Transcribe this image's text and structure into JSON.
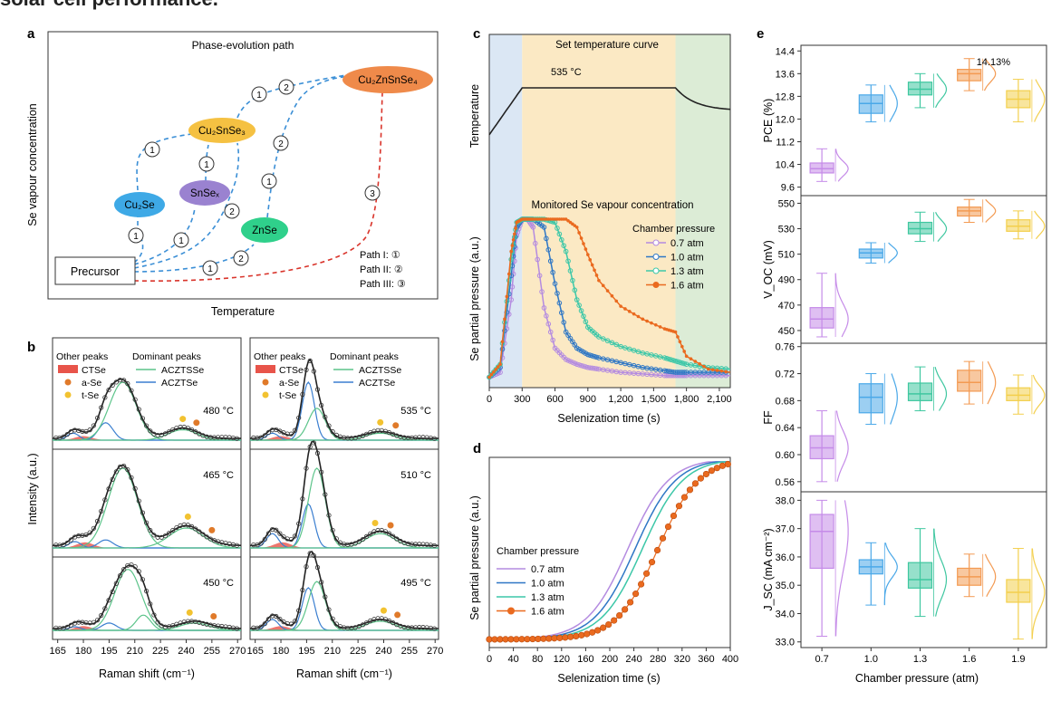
{
  "page_title": "solar cell performance.",
  "panel_labels": {
    "a": "a",
    "b": "b",
    "c": "c",
    "d": "d",
    "e": "e"
  },
  "panel_a": {
    "title": "Phase-evolution path",
    "ylabel": "Se vapour concentration",
    "xlabel": "Temperature",
    "nodes": {
      "precursor": "Precursor",
      "cu2se": "Cu₂Se",
      "snsex": "SnSeₓ",
      "cu2snse3": "Cu₂SnSe₃",
      "znse": "ZnSe",
      "czts": "Cu₂ZnSnSe₄"
    },
    "markers": {
      "one": "1",
      "two": "2",
      "three": "3"
    },
    "path_legend": [
      "Path I: ①",
      "Path II: ②",
      "Path III: ③"
    ],
    "colors": {
      "cu2se": "#3ea9e6",
      "snsex": "#9a82d0",
      "cu2snse3": "#f5c142",
      "znse": "#2fd08b",
      "czts": "#ef8a4a",
      "path_blue": "#3b8fd6",
      "path_red": "#d9342b"
    }
  },
  "panel_b": {
    "ylabel": "Intensity (a.u.)",
    "xlabel": "Raman shift (cm⁻¹)",
    "legend": {
      "other_title": "Other peaks",
      "dominant_title": "Dominant peaks",
      "ctse": "CTSe",
      "ase": "a-Se",
      "tse": "t-Se",
      "acztsse": "ACZTSSe",
      "acztse": "ACZTSe"
    },
    "xticks": [
      "165",
      "180",
      "195",
      "210",
      "225",
      "240",
      "255",
      "270"
    ],
    "left_temps": [
      "480 °C",
      "465 °C",
      "450 °C"
    ],
    "right_temps": [
      "535 °C",
      "510 °C",
      "495 °C"
    ],
    "colors": {
      "ctse": "#e8544a",
      "ase": "#e07a2a",
      "tse": "#f2c230",
      "acztsse": "#5cc48a",
      "acztse": "#3b7fd0",
      "fit": "#222222"
    }
  },
  "chart_data": [
    {
      "type": "line",
      "title": "Set temperature curve",
      "ylabel": "Temperature",
      "annotation": "535 °C",
      "x": [
        0,
        300,
        1700,
        2200
      ],
      "y": [
        0.55,
        1.0,
        1.0,
        0.78
      ]
    },
    {
      "type": "line",
      "title": "Monitored Se vapour concentration",
      "xlabel": "Selenization time (s)",
      "ylabel": "Se partial pressure (a.u.)",
      "legend_title": "Chamber pressure",
      "xlim": [
        0,
        2200
      ],
      "xticks": [
        "0",
        "300",
        "600",
        "900",
        "1,200",
        "1,500",
        "1,800",
        "2,100"
      ],
      "shaded_regions": [
        {
          "from": 0,
          "to": 300,
          "color": "#dbe7f4"
        },
        {
          "from": 300,
          "to": 1700,
          "color": "#fbe9c4"
        },
        {
          "from": 1700,
          "to": 2200,
          "color": "#dcecd6"
        }
      ],
      "x": [
        0,
        100,
        200,
        250,
        300,
        350,
        400,
        500,
        600,
        700,
        800,
        900,
        1000,
        1200,
        1400,
        1600,
        1700,
        1800,
        2000,
        2200
      ],
      "series": [
        {
          "name": "0.7 atm",
          "color": "#b48be0",
          "values": [
            0.02,
            0.05,
            0.5,
            0.9,
            1.0,
            1.0,
            0.95,
            0.45,
            0.2,
            0.13,
            0.1,
            0.08,
            0.07,
            0.05,
            0.04,
            0.03,
            0.03,
            0.03,
            0.03,
            0.03
          ]
        },
        {
          "name": "1.0 atm",
          "color": "#2f77c5",
          "values": [
            0.02,
            0.08,
            0.65,
            0.95,
            1.0,
            1.0,
            1.0,
            0.95,
            0.6,
            0.3,
            0.2,
            0.16,
            0.14,
            0.11,
            0.08,
            0.06,
            0.05,
            0.05,
            0.05,
            0.05
          ]
        },
        {
          "name": "1.3 atm",
          "color": "#3cc7a8",
          "values": [
            0.02,
            0.1,
            0.75,
            0.98,
            1.0,
            1.0,
            1.0,
            1.0,
            0.98,
            0.8,
            0.5,
            0.33,
            0.27,
            0.21,
            0.17,
            0.14,
            0.12,
            0.1,
            0.08,
            0.07
          ]
        },
        {
          "name": "1.6 atm",
          "color": "#ea6a1f",
          "values": [
            0.02,
            0.1,
            0.8,
            0.98,
            1.0,
            1.0,
            1.0,
            1.0,
            1.0,
            1.0,
            0.95,
            0.78,
            0.62,
            0.46,
            0.38,
            0.32,
            0.3,
            0.15,
            0.07,
            0.05
          ]
        }
      ]
    },
    {
      "type": "line",
      "xlabel": "Selenization time (s)",
      "ylabel": "Se partial pressure (a.u.)",
      "legend_title": "Chamber pressure",
      "xlim": [
        0,
        400
      ],
      "xticks": [
        "0",
        "40",
        "80",
        "120",
        "160",
        "200",
        "240",
        "280",
        "320",
        "360",
        "400"
      ],
      "series": [
        {
          "name": "0.7 atm",
          "color": "#b48be0",
          "midpoint": 230,
          "width": 34
        },
        {
          "name": "1.0 atm",
          "color": "#2f77c5",
          "midpoint": 242,
          "width": 34
        },
        {
          "name": "1.3 atm",
          "color": "#3cc7a8",
          "midpoint": 254,
          "width": 34
        },
        {
          "name": "1.6 atm",
          "color": "#ea6a1f",
          "midpoint": 280,
          "width": 34
        }
      ]
    },
    {
      "type": "box",
      "xlabel": "Chamber pressure (atm)",
      "categories": [
        "0.7",
        "1.0",
        "1.3",
        "1.6",
        "1.9"
      ],
      "colors": [
        "#c58be8",
        "#4aa8e8",
        "#3fc7a0",
        "#f39a52",
        "#f3cf4c"
      ],
      "annotation": "14.13%",
      "panels": [
        {
          "ylabel": "PCE (%)",
          "ylim": [
            9.3,
            14.6
          ],
          "yticks": [
            "9.6",
            "10.4",
            "11.2",
            "12.0",
            "12.8",
            "13.6",
            "14.4"
          ],
          "tickvals": [
            9.6,
            10.4,
            11.2,
            12.0,
            12.8,
            13.6,
            14.4
          ],
          "boxes": [
            {
              "q1": 10.1,
              "med": 10.25,
              "q3": 10.45,
              "min": 9.8,
              "max": 10.95
            },
            {
              "q1": 12.2,
              "med": 12.55,
              "q3": 12.85,
              "min": 11.9,
              "max": 13.2
            },
            {
              "q1": 12.85,
              "med": 13.05,
              "q3": 13.3,
              "min": 12.4,
              "max": 13.6
            },
            {
              "q1": 13.35,
              "med": 13.6,
              "q3": 13.75,
              "min": 13.0,
              "max": 14.13
            },
            {
              "q1": 12.4,
              "med": 12.7,
              "q3": 13.0,
              "min": 11.9,
              "max": 13.4
            }
          ]
        },
        {
          "ylabel": "V_OC (mV)",
          "ylim": [
            440,
            556
          ],
          "yticks": [
            "450",
            "470",
            "490",
            "510",
            "530",
            "550"
          ],
          "tickvals": [
            450,
            470,
            490,
            510,
            530,
            550
          ],
          "boxes": [
            {
              "q1": 452,
              "med": 459,
              "q3": 468,
              "min": 445,
              "max": 495
            },
            {
              "q1": 507,
              "med": 511,
              "q3": 514,
              "min": 503,
              "max": 519
            },
            {
              "q1": 526,
              "med": 530,
              "q3": 535,
              "min": 520,
              "max": 543
            },
            {
              "q1": 540,
              "med": 544,
              "q3": 547,
              "min": 535,
              "max": 553
            },
            {
              "q1": 528,
              "med": 532,
              "q3": 537,
              "min": 522,
              "max": 544
            }
          ]
        },
        {
          "ylabel": "FF",
          "ylim": [
            0.545,
            0.765
          ],
          "yticks": [
            "0.56",
            "0.60",
            "0.64",
            "0.68",
            "0.72",
            "0.76"
          ],
          "tickvals": [
            0.56,
            0.6,
            0.64,
            0.68,
            0.72,
            0.76
          ],
          "boxes": [
            {
              "q1": 0.594,
              "med": 0.61,
              "q3": 0.628,
              "min": 0.56,
              "max": 0.665
            },
            {
              "q1": 0.662,
              "med": 0.685,
              "q3": 0.705,
              "min": 0.645,
              "max": 0.72
            },
            {
              "q1": 0.68,
              "med": 0.69,
              "q3": 0.706,
              "min": 0.665,
              "max": 0.73
            },
            {
              "q1": 0.694,
              "med": 0.707,
              "q3": 0.725,
              "min": 0.675,
              "max": 0.738
            },
            {
              "q1": 0.68,
              "med": 0.688,
              "q3": 0.699,
              "min": 0.66,
              "max": 0.718
            }
          ]
        },
        {
          "ylabel": "J_SC (mA cm⁻²)",
          "ylim": [
            32.8,
            38.3
          ],
          "yticks": [
            "33.0",
            "34.0",
            "35.0",
            "36.0",
            "37.0",
            "38.0"
          ],
          "tickvals": [
            33,
            34,
            35,
            36,
            37,
            38
          ],
          "boxes": [
            {
              "q1": 35.6,
              "med": 36.9,
              "q3": 37.5,
              "min": 33.2,
              "max": 38.0
            },
            {
              "q1": 35.4,
              "med": 35.65,
              "q3": 35.9,
              "min": 34.3,
              "max": 36.5
            },
            {
              "q1": 34.9,
              "med": 35.2,
              "q3": 35.8,
              "min": 33.9,
              "max": 37.0
            },
            {
              "q1": 35.0,
              "med": 35.3,
              "q3": 35.6,
              "min": 34.6,
              "max": 36.1
            },
            {
              "q1": 34.4,
              "med": 34.75,
              "q3": 35.2,
              "min": 33.1,
              "max": 36.3
            }
          ]
        }
      ]
    }
  ]
}
